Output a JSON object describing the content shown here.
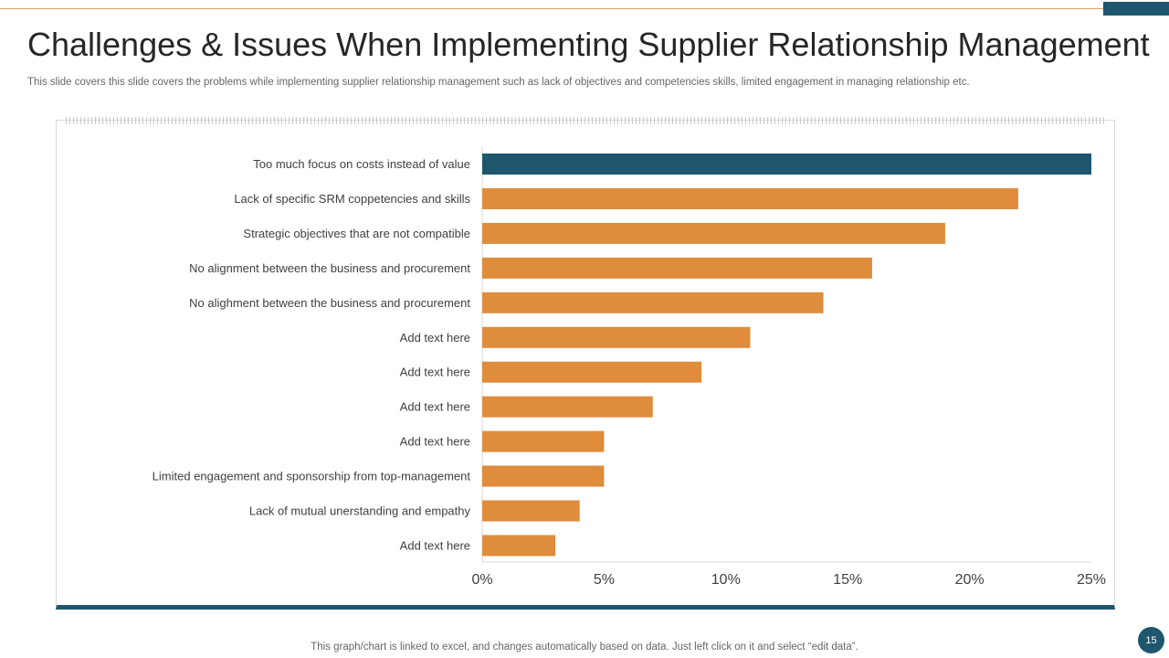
{
  "slide": {
    "title": "Challenges & Issues When Implementing Supplier Relationship Management",
    "subtitle": "This slide covers this slide covers the problems while implementing supplier relationship management such as lack of objectives and competencies skills, limited engagement in managing relationship etc.",
    "footnote": "This graph/chart is linked to excel,  and changes automatically based on data. Just left click on it and select “edit data”.",
    "page_number": "15"
  },
  "colors": {
    "accent": "#1e566e",
    "bar": "#df8c3b",
    "highlight_bar": "#1e566e",
    "text": "#404040"
  },
  "chart_data": {
    "type": "bar",
    "orientation": "horizontal",
    "categories": [
      "Too much focus on costs instead of value",
      "Lack of specific SRM coppetencies and skills",
      "Strategic objectives that are not compatible",
      "No alignment between the business and procurement",
      "No alighment between the business and procurement",
      "Add text here",
      "Add text here",
      "Add text here",
      "Add text here",
      "Limited engagement and sponsorship from top-management",
      "Lack of mutual unerstanding and empathy",
      "Add text here"
    ],
    "values": [
      25,
      22,
      19,
      16,
      14,
      11,
      9,
      7,
      5,
      5,
      4,
      3
    ],
    "highlight_index": 0,
    "xlim": [
      0,
      25
    ],
    "x_ticks": [
      "0%",
      "5%",
      "10%",
      "15%",
      "20%",
      "25%"
    ],
    "x_tick_values": [
      0,
      5,
      10,
      15,
      20,
      25
    ],
    "grid": false,
    "legend": "none"
  }
}
